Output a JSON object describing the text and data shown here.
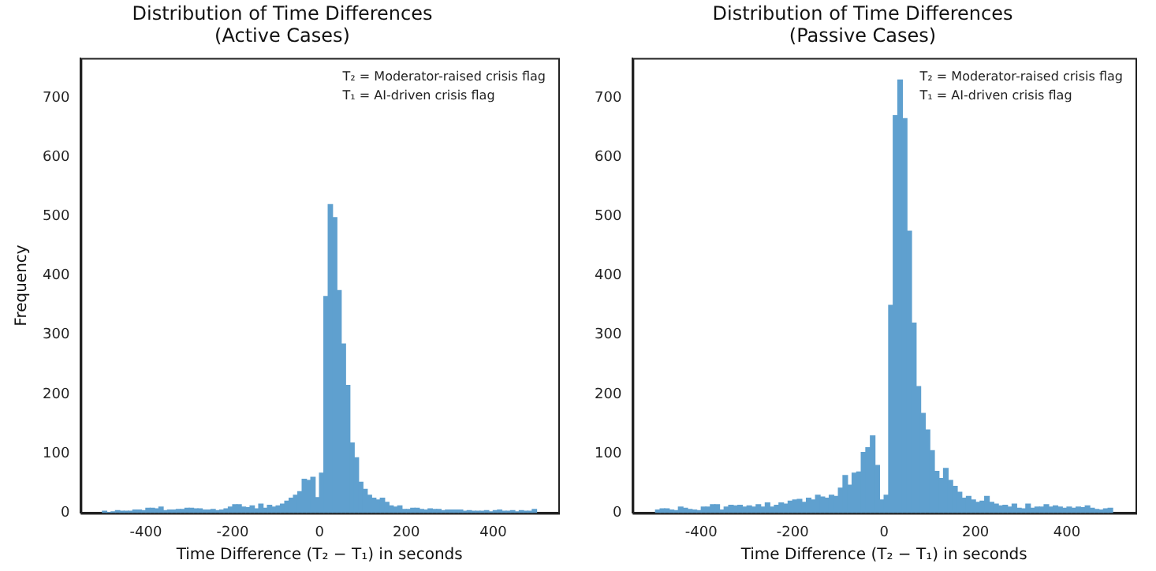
{
  "chart_data": [
    {
      "type": "histogram",
      "title": "Distribution of Time Differences\n(Active Cases)",
      "xlabel": "Time Difference (T₂ − T₁) in seconds",
      "ylabel": "Frequency",
      "color": "#5fa0cf",
      "bins": [
        -500,
        -490,
        -480,
        -470,
        -460,
        -450,
        -440,
        -430,
        -420,
        -410,
        -400,
        -390,
        -380,
        -370,
        -360,
        -350,
        -340,
        -330,
        -320,
        -310,
        -300,
        -290,
        -280,
        -270,
        -260,
        -250,
        -240,
        -230,
        -220,
        -210,
        -200,
        -190,
        -180,
        -170,
        -160,
        -150,
        -140,
        -130,
        -120,
        -110,
        -100,
        -90,
        -80,
        -70,
        -60,
        -50,
        -40,
        -30,
        -20,
        -10,
        0,
        10,
        20,
        30,
        40,
        50,
        60,
        70,
        80,
        90,
        100,
        110,
        120,
        130,
        140,
        150,
        160,
        170,
        180,
        190,
        200,
        210,
        220,
        230,
        240,
        250,
        260,
        270,
        280,
        290,
        300,
        310,
        320,
        330,
        340,
        350,
        360,
        370,
        380,
        390,
        400,
        410,
        420,
        430,
        440,
        450,
        460,
        470,
        480,
        490,
        500
      ],
      "values": [
        3,
        1,
        2,
        4,
        3,
        3,
        3,
        5,
        5,
        4,
        8,
        8,
        7,
        10,
        4,
        5,
        5,
        6,
        6,
        8,
        8,
        7,
        7,
        5,
        5,
        6,
        4,
        5,
        7,
        10,
        14,
        14,
        10,
        9,
        12,
        7,
        15,
        8,
        13,
        10,
        12,
        15,
        20,
        25,
        30,
        36,
        57,
        55,
        60,
        26,
        67,
        365,
        520,
        498,
        375,
        285,
        215,
        118,
        93,
        52,
        40,
        30,
        25,
        22,
        25,
        18,
        12,
        10,
        12,
        6,
        6,
        8,
        8,
        6,
        5,
        7,
        6,
        6,
        4,
        5,
        5,
        5,
        5,
        3,
        4,
        3,
        3,
        3,
        4,
        2,
        4,
        5,
        3,
        3,
        4,
        2,
        4,
        3,
        3,
        6
      ],
      "xlim": [
        -550,
        550
      ],
      "xticks": [
        -400,
        -200,
        0,
        200,
        400
      ],
      "ylim": [
        0,
        767
      ],
      "yticks": [
        0,
        100,
        200,
        300,
        400,
        500,
        600,
        700
      ],
      "annotations": [
        "T₂ = Moderator-raised crisis flag",
        "T₁ = AI-driven crisis flag"
      ]
    },
    {
      "type": "histogram",
      "title": "Distribution of Time Differences\n(Passive Cases)",
      "xlabel": "Time Difference (T₂ − T₁) in seconds",
      "color": "#5fa0cf",
      "bins": [
        -500,
        -490,
        -480,
        -470,
        -460,
        -450,
        -440,
        -430,
        -420,
        -410,
        -400,
        -390,
        -380,
        -370,
        -360,
        -350,
        -340,
        -330,
        -320,
        -310,
        -300,
        -290,
        -280,
        -270,
        -260,
        -250,
        -240,
        -230,
        -220,
        -210,
        -200,
        -190,
        -180,
        -170,
        -160,
        -150,
        -140,
        -130,
        -120,
        -110,
        -100,
        -90,
        -80,
        -70,
        -60,
        -50,
        -40,
        -30,
        -20,
        -10,
        0,
        10,
        20,
        30,
        40,
        50,
        60,
        70,
        80,
        90,
        100,
        110,
        120,
        130,
        140,
        150,
        160,
        170,
        180,
        190,
        200,
        210,
        220,
        230,
        240,
        250,
        260,
        270,
        280,
        290,
        300,
        310,
        320,
        330,
        340,
        350,
        360,
        370,
        380,
        390,
        400,
        410,
        420,
        430,
        440,
        450,
        460,
        470,
        480,
        490,
        500
      ],
      "values": [
        5,
        7,
        7,
        5,
        4,
        10,
        8,
        6,
        5,
        4,
        10,
        10,
        14,
        14,
        5,
        10,
        13,
        12,
        13,
        10,
        12,
        10,
        14,
        10,
        17,
        10,
        13,
        17,
        15,
        20,
        22,
        23,
        18,
        25,
        22,
        30,
        27,
        25,
        30,
        28,
        42,
        63,
        47,
        67,
        69,
        102,
        110,
        130,
        80,
        22,
        30,
        350,
        670,
        730,
        665,
        475,
        320,
        213,
        168,
        140,
        105,
        70,
        58,
        75,
        55,
        45,
        35,
        25,
        28,
        22,
        18,
        20,
        28,
        18,
        15,
        12,
        13,
        10,
        15,
        8,
        7,
        15,
        8,
        10,
        10,
        14,
        10,
        12,
        10,
        8,
        10,
        8,
        10,
        9,
        12,
        8,
        6,
        5,
        7,
        8
      ],
      "xlim": [
        -550,
        550
      ],
      "xticks": [
        -400,
        -200,
        0,
        200,
        400
      ],
      "ylim": [
        0,
        767
      ],
      "yticks": [
        0,
        100,
        200,
        300,
        400,
        500,
        600,
        700
      ],
      "annotations": [
        "T₂ = Moderator-raised crisis flag",
        "T₁ = AI-driven crisis flag"
      ]
    }
  ]
}
